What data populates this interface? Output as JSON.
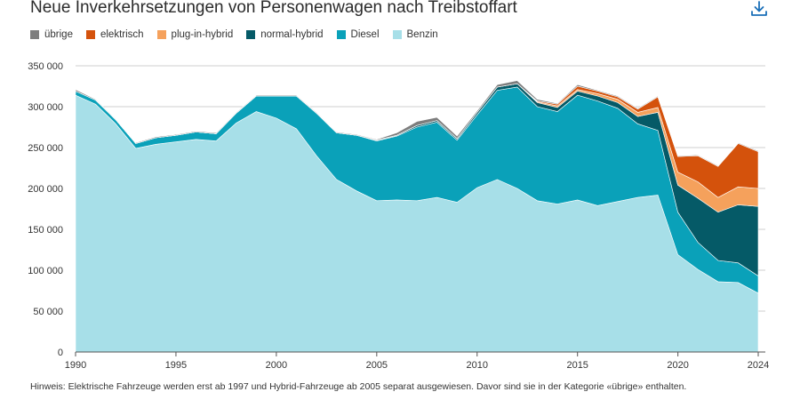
{
  "header": {
    "download_icon": "download-icon"
  },
  "note": "Hinweis: Elektrische Fahrzeuge werden erst ab 1997 und Hybrid-Fahrzeuge ab 2005 separat ausgewiesen. Davor sind sie in der Kategorie «übrige» enthalten.",
  "colors": {
    "Benzin": "#a7dfe8",
    "Diesel": "#0aa1b9",
    "normal-hybrid": "#055a67",
    "plug-in-hybrid": "#f5a15c",
    "elektrisch": "#d4520c",
    "übrige": "#7d7d7d"
  },
  "chart_data": {
    "type": "area",
    "stacked": true,
    "title": "Neue Inverkehrsetzungen von Personenwagen nach Treibstoffart",
    "xlabel": "",
    "ylabel": "",
    "xlim": [
      1990,
      2024
    ],
    "ylim": [
      0,
      350000
    ],
    "x_ticks": [
      "1990",
      "1995",
      "2000",
      "2005",
      "2010",
      "2015",
      "2020",
      "2024"
    ],
    "y_ticks": [
      "0",
      "50 000",
      "100 000",
      "150 000",
      "200 000",
      "250 000",
      "300 000",
      "350 000"
    ],
    "legend_order": [
      "übrige",
      "elektrisch",
      "plug-in-hybrid",
      "normal-hybrid",
      "Diesel",
      "Benzin"
    ],
    "x": [
      1990,
      1991,
      1992,
      1993,
      1994,
      1995,
      1996,
      1997,
      1998,
      1999,
      2000,
      2001,
      2002,
      2003,
      2004,
      2005,
      2006,
      2007,
      2008,
      2009,
      2010,
      2011,
      2012,
      2013,
      2014,
      2015,
      2016,
      2017,
      2018,
      2019,
      2020,
      2021,
      2022,
      2023,
      2024
    ],
    "series": [
      {
        "name": "Benzin",
        "values": [
          314000,
          303000,
          279000,
          249000,
          254000,
          257000,
          260000,
          258000,
          280000,
          294000,
          286000,
          273000,
          240000,
          211000,
          197000,
          185000,
          186000,
          185000,
          189000,
          183000,
          201000,
          211000,
          200000,
          185000,
          181000,
          186000,
          179000,
          184000,
          189000,
          192000,
          119000,
          101000,
          86000,
          85000,
          72000
        ]
      },
      {
        "name": "Diesel",
        "values": [
          5000,
          5000,
          5000,
          6000,
          8000,
          8000,
          9000,
          9000,
          12000,
          19000,
          27000,
          40000,
          52000,
          57000,
          68000,
          73000,
          78000,
          90000,
          92000,
          76000,
          89000,
          109000,
          124000,
          115000,
          113000,
          128000,
          128000,
          114000,
          90000,
          79000,
          52000,
          33000,
          26000,
          24000,
          21000
        ]
      },
      {
        "name": "normal-hybrid",
        "values": [
          0,
          0,
          0,
          0,
          0,
          0,
          0,
          0,
          0,
          0,
          0,
          0,
          0,
          0,
          0,
          1000,
          1000,
          2000,
          2000,
          2000,
          3000,
          4000,
          4000,
          5000,
          5000,
          5000,
          6000,
          7000,
          9000,
          22000,
          33000,
          54000,
          59000,
          71000,
          85000
        ]
      },
      {
        "name": "plug-in-hybrid",
        "values": [
          0,
          0,
          0,
          0,
          0,
          0,
          0,
          0,
          0,
          0,
          0,
          0,
          0,
          0,
          0,
          0,
          0,
          0,
          0,
          0,
          0,
          0,
          0,
          1000,
          2000,
          2000,
          3000,
          4000,
          5000,
          6000,
          16000,
          20000,
          18000,
          22000,
          22000
        ]
      },
      {
        "name": "elektrisch",
        "values": [
          0,
          0,
          0,
          0,
          0,
          0,
          0,
          0,
          0,
          0,
          0,
          0,
          0,
          0,
          0,
          0,
          0,
          0,
          0,
          0,
          0,
          0,
          0,
          1000,
          2000,
          4000,
          3000,
          3000,
          4000,
          13000,
          19000,
          32000,
          38000,
          53000,
          45000
        ]
      },
      {
        "name": "übrige",
        "values": [
          2000,
          1000,
          1000,
          1000,
          1000,
          1000,
          1000,
          1000,
          1000,
          1000,
          1000,
          1000,
          1000,
          1000,
          1000,
          1000,
          3000,
          5000,
          4000,
          3000,
          2000,
          3000,
          4000,
          2000,
          1000,
          2000,
          1000,
          1000,
          1000,
          1000,
          1000,
          1000,
          1000,
          1000,
          1000
        ]
      }
    ]
  }
}
